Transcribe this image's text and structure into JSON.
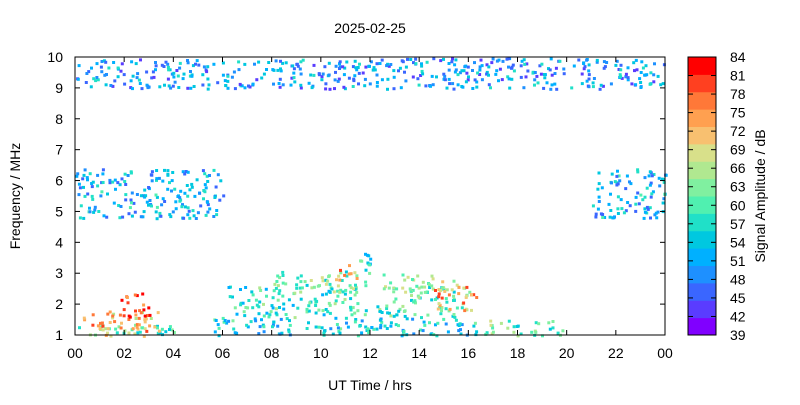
{
  "chart_data": {
    "type": "heatmap",
    "title": "2025-02-25",
    "xlabel": "UT Time / hrs",
    "ylabel": "Frequency / MHz",
    "colorbar_label": "Signal Amplitude / dB",
    "xlim": [
      0,
      24
    ],
    "ylim": [
      1,
      10
    ],
    "x_ticks": [
      "00",
      "02",
      "04",
      "06",
      "08",
      "10",
      "12",
      "14",
      "16",
      "18",
      "20",
      "22",
      "00"
    ],
    "y_ticks": [
      "1",
      "2",
      "3",
      "4",
      "5",
      "6",
      "7",
      "8",
      "9",
      "10"
    ],
    "colorbar_ticks": [
      "39",
      "42",
      "45",
      "48",
      "51",
      "54",
      "57",
      "60",
      "63",
      "66",
      "69",
      "72",
      "75",
      "78",
      "81",
      "84"
    ],
    "colorbar_range": [
      39,
      84
    ],
    "colormap": [
      "#8000ff",
      "#5a3cff",
      "#3a66ff",
      "#1e90ff",
      "#00b0ff",
      "#00c8e0",
      "#20e0c8",
      "#50f0b0",
      "#80f0a0",
      "#b0e890",
      "#d8e08a",
      "#f8c070",
      "#ffa050",
      "#ff7838",
      "#ff4020",
      "#ff0000"
    ],
    "grid": false,
    "regions": [
      {
        "x": [
          0.1,
          4.0
        ],
        "y": [
          1.0,
          1.4
        ],
        "level": 60
      },
      {
        "x": [
          0.3,
          3.4
        ],
        "y": [
          1.0,
          1.8
        ],
        "level": 72
      },
      {
        "x": [
          1.8,
          3.0
        ],
        "y": [
          1.5,
          2.4
        ],
        "level": 80
      },
      {
        "x": [
          5.6,
          12.0
        ],
        "y": [
          1.0,
          1.6
        ],
        "level": 55
      },
      {
        "x": [
          6.2,
          11.8
        ],
        "y": [
          1.6,
          2.6
        ],
        "level": 58
      },
      {
        "x": [
          8.0,
          11.5
        ],
        "y": [
          2.4,
          3.1
        ],
        "level": 62
      },
      {
        "x": [
          10.5,
          11.5
        ],
        "y": [
          2.8,
          3.3
        ],
        "level": 74
      },
      {
        "x": [
          11.5,
          12.0
        ],
        "y": [
          2.5,
          4.0
        ],
        "level": 58
      },
      {
        "x": [
          12.0,
          16.5
        ],
        "y": [
          1.0,
          1.6
        ],
        "level": 55
      },
      {
        "x": [
          12.2,
          16.0
        ],
        "y": [
          1.6,
          2.6
        ],
        "level": 60
      },
      {
        "x": [
          12.5,
          15.5
        ],
        "y": [
          2.4,
          3.0
        ],
        "level": 64
      },
      {
        "x": [
          14.5,
          16.3
        ],
        "y": [
          1.8,
          2.6
        ],
        "level": 74
      },
      {
        "x": [
          16.5,
          19.8
        ],
        "y": [
          1.0,
          1.5
        ],
        "level": 62
      },
      {
        "x": [
          0.0,
          6.0
        ],
        "y": [
          4.8,
          6.4
        ],
        "level": 52
      },
      {
        "x": [
          21.0,
          24.0
        ],
        "y": [
          4.8,
          6.4
        ],
        "level": 52
      },
      {
        "x": [
          0.0,
          24.0
        ],
        "y": [
          9.0,
          10.0
        ],
        "level": 50
      }
    ]
  }
}
